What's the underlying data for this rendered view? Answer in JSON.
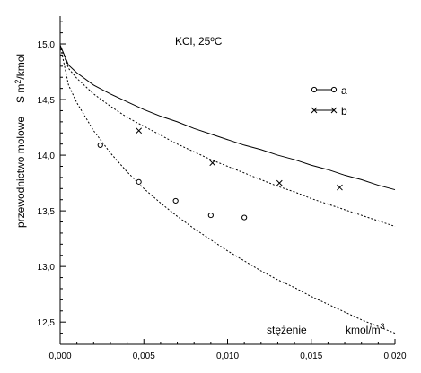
{
  "chart_data": {
    "type": "line",
    "title": "KCl, 25ºC",
    "xlabel": "stężenie",
    "xunit": "kmol/m",
    "xunit_sup": "3",
    "ylabel": "przewodnictwo molowe",
    "yunit": "S m",
    "yunit_sup": "2",
    "yunit_tail": "/kmol",
    "xlim": [
      0,
      0.02
    ],
    "ylim": [
      12.3,
      15.25
    ],
    "x_ticks": [
      "0,000",
      "0,005",
      "0,010",
      "0,015",
      "0,020"
    ],
    "y_ticks": [
      "12,5",
      "13,0",
      "13,5",
      "14,0",
      "14,5",
      "15,0"
    ],
    "x_tick_values": [
      0,
      0.005,
      0.01,
      0.015,
      0.02
    ],
    "y_tick_values": [
      12.5,
      13.0,
      13.5,
      14.0,
      14.5,
      15.0
    ],
    "legend": [
      {
        "label": "a",
        "marker": "circle"
      },
      {
        "label": "b",
        "marker": "cross"
      }
    ],
    "series": [
      {
        "style": "solid",
        "x": [
          0,
          0.0005,
          0.001,
          0.002,
          0.003,
          0.004,
          0.005,
          0.006,
          0.007,
          0.008,
          0.009,
          0.01,
          0.011,
          0.012,
          0.013,
          0.014,
          0.015,
          0.016,
          0.017,
          0.018,
          0.019,
          0.02
        ],
        "y": [
          14.99,
          14.81,
          14.74,
          14.63,
          14.55,
          14.48,
          14.41,
          14.35,
          14.3,
          14.24,
          14.19,
          14.14,
          14.09,
          14.05,
          14.0,
          13.96,
          13.91,
          13.87,
          13.82,
          13.78,
          13.73,
          13.69
        ]
      },
      {
        "style": "dotted",
        "x": [
          0,
          0.0005,
          0.001,
          0.002,
          0.003,
          0.004,
          0.005,
          0.006,
          0.007,
          0.008,
          0.009,
          0.01,
          0.011,
          0.012,
          0.013,
          0.014,
          0.015,
          0.016,
          0.017,
          0.018,
          0.019,
          0.02
        ],
        "y": [
          14.99,
          14.78,
          14.69,
          14.55,
          14.44,
          14.34,
          14.26,
          14.18,
          14.1,
          14.03,
          13.96,
          13.9,
          13.84,
          13.78,
          13.72,
          13.67,
          13.61,
          13.56,
          13.51,
          13.46,
          13.41,
          13.36
        ]
      },
      {
        "style": "dotted",
        "x": [
          0,
          0.0005,
          0.001,
          0.002,
          0.003,
          0.004,
          0.005,
          0.006,
          0.007,
          0.008,
          0.009,
          0.01,
          0.011,
          0.012,
          0.013,
          0.014,
          0.015,
          0.016,
          0.017,
          0.018,
          0.019,
          0.02
        ],
        "y": [
          14.99,
          14.63,
          14.47,
          14.22,
          14.02,
          13.85,
          13.7,
          13.57,
          13.45,
          13.34,
          13.24,
          13.14,
          13.05,
          12.96,
          12.88,
          12.81,
          12.73,
          12.66,
          12.59,
          12.52,
          12.46,
          12.4
        ]
      }
    ],
    "points_a": {
      "x": [
        0.0024,
        0.0047,
        0.0069,
        0.009,
        0.011
      ],
      "y": [
        14.09,
        13.76,
        13.59,
        13.46,
        13.44
      ]
    },
    "points_b": {
      "x": [
        0.0047,
        0.0091,
        0.0131,
        0.0167
      ],
      "y": [
        14.22,
        13.93,
        13.75,
        13.71
      ]
    }
  }
}
